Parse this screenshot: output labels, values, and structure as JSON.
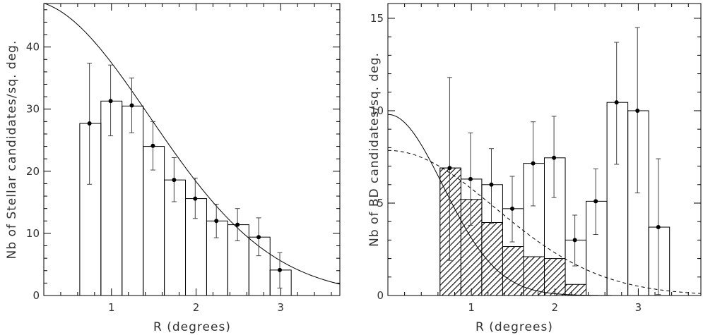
{
  "chart_data": [
    {
      "type": "bar",
      "ylabel": "Nb of Stellar candidates/sq. deg.",
      "xlabel": "R (degrees)",
      "xlim": [
        0.2,
        3.7
      ],
      "ylim": [
        0,
        47
      ],
      "xticks": [
        1,
        2,
        3
      ],
      "yticks": [
        0,
        10,
        20,
        30,
        40
      ],
      "bars": [
        {
          "x0": 0.625,
          "x1": 0.875,
          "y": 27.7
        },
        {
          "x0": 0.875,
          "x1": 1.125,
          "y": 31.3
        },
        {
          "x0": 1.125,
          "x1": 1.375,
          "y": 30.5
        },
        {
          "x0": 1.375,
          "x1": 1.625,
          "y": 24.0
        },
        {
          "x0": 1.625,
          "x1": 1.875,
          "y": 18.6
        },
        {
          "x0": 1.875,
          "x1": 2.125,
          "y": 15.6
        },
        {
          "x0": 2.125,
          "x1": 2.375,
          "y": 12.0
        },
        {
          "x0": 2.375,
          "x1": 2.625,
          "y": 11.4
        },
        {
          "x0": 2.625,
          "x1": 2.875,
          "y": 9.4
        },
        {
          "x0": 2.875,
          "x1": 3.125,
          "y": 4.1
        }
      ],
      "points": [
        {
          "x": 0.74,
          "y": 27.7,
          "yerr_low": 17.9,
          "yerr_high": 37.4
        },
        {
          "x": 0.99,
          "y": 31.3,
          "yerr_low": 25.7,
          "yerr_high": 37.1
        },
        {
          "x": 1.24,
          "y": 30.6,
          "yerr_low": 26.2,
          "yerr_high": 35.0
        },
        {
          "x": 1.49,
          "y": 24.1,
          "yerr_low": 20.2,
          "yerr_high": 28.0
        },
        {
          "x": 1.74,
          "y": 18.6,
          "yerr_low": 15.1,
          "yerr_high": 22.2
        },
        {
          "x": 1.99,
          "y": 15.6,
          "yerr_low": 12.4,
          "yerr_high": 18.9
        },
        {
          "x": 2.24,
          "y": 12.0,
          "yerr_low": 9.3,
          "yerr_high": 14.7
        },
        {
          "x": 2.49,
          "y": 11.4,
          "yerr_low": 8.8,
          "yerr_high": 14.0
        },
        {
          "x": 2.74,
          "y": 9.4,
          "yerr_low": 6.4,
          "yerr_high": 12.5
        },
        {
          "x": 2.99,
          "y": 4.1,
          "yerr_low": 1.2,
          "yerr_high": 6.9
        }
      ],
      "curves": [
        {
          "style": "solid",
          "model": "gaussian",
          "amplitude": 47.5,
          "sigma": 1.45
        }
      ]
    },
    {
      "type": "bar",
      "ylabel": "Nb of BD candidates/sq. deg.",
      "xlabel": "R (degrees)",
      "xlim": [
        0.0,
        3.75
      ],
      "ylim": [
        0,
        15.8
      ],
      "xticks": [
        1,
        2,
        3
      ],
      "yticks": [
        0,
        5,
        10,
        15
      ],
      "bars": [
        {
          "x0": 0.625,
          "x1": 0.875,
          "y": 6.9
        },
        {
          "x0": 0.875,
          "x1": 1.125,
          "y": 6.3
        },
        {
          "x0": 1.125,
          "x1": 1.375,
          "y": 6.0
        },
        {
          "x0": 1.375,
          "x1": 1.625,
          "y": 4.7
        },
        {
          "x0": 1.625,
          "x1": 1.875,
          "y": 7.15
        },
        {
          "x0": 1.875,
          "x1": 2.125,
          "y": 7.45
        },
        {
          "x0": 2.125,
          "x1": 2.375,
          "y": 3.0
        },
        {
          "x0": 2.375,
          "x1": 2.625,
          "y": 5.1
        },
        {
          "x0": 2.625,
          "x1": 2.875,
          "y": 10.45
        },
        {
          "x0": 2.875,
          "x1": 3.125,
          "y": 10.0
        },
        {
          "x0": 3.125,
          "x1": 3.375,
          "y": 3.7
        }
      ],
      "hatched_bars": [
        {
          "x0": 0.625,
          "x1": 0.875,
          "y": 6.9
        },
        {
          "x0": 0.875,
          "x1": 1.125,
          "y": 5.2
        },
        {
          "x0": 1.125,
          "x1": 1.375,
          "y": 3.95
        },
        {
          "x0": 1.375,
          "x1": 1.625,
          "y": 2.65
        },
        {
          "x0": 1.625,
          "x1": 1.875,
          "y": 2.1
        },
        {
          "x0": 1.875,
          "x1": 2.125,
          "y": 2.0
        },
        {
          "x0": 2.125,
          "x1": 2.375,
          "y": 0.6
        }
      ],
      "points": [
        {
          "x": 0.74,
          "y": 6.9,
          "yerr_low": 1.9,
          "yerr_high": 11.8
        },
        {
          "x": 0.99,
          "y": 6.3,
          "yerr_low": 3.8,
          "yerr_high": 8.8
        },
        {
          "x": 1.24,
          "y": 6.0,
          "yerr_low": 3.9,
          "yerr_high": 7.95
        },
        {
          "x": 1.49,
          "y": 4.7,
          "yerr_low": 2.9,
          "yerr_high": 6.45
        },
        {
          "x": 1.74,
          "y": 7.15,
          "yerr_low": 4.85,
          "yerr_high": 9.4
        },
        {
          "x": 1.99,
          "y": 7.45,
          "yerr_low": 5.3,
          "yerr_high": 9.7
        },
        {
          "x": 2.24,
          "y": 3.0,
          "yerr_low": 1.6,
          "yerr_high": 4.35
        },
        {
          "x": 2.49,
          "y": 5.1,
          "yerr_low": 3.3,
          "yerr_high": 6.85
        },
        {
          "x": 2.74,
          "y": 10.45,
          "yerr_low": 7.1,
          "yerr_high": 13.7
        },
        {
          "x": 2.99,
          "y": 10.0,
          "yerr_low": 5.55,
          "yerr_high": 14.5
        },
        {
          "x": 3.24,
          "y": 3.7,
          "yerr_low": 0.05,
          "yerr_high": 7.4
        }
      ],
      "curves": [
        {
          "style": "solid",
          "model": "gaussian",
          "amplitude": 9.8,
          "sigma": 0.66
        },
        {
          "style": "dashed",
          "model": "gaussian",
          "amplitude": 7.85,
          "sigma": 1.28
        }
      ]
    }
  ]
}
